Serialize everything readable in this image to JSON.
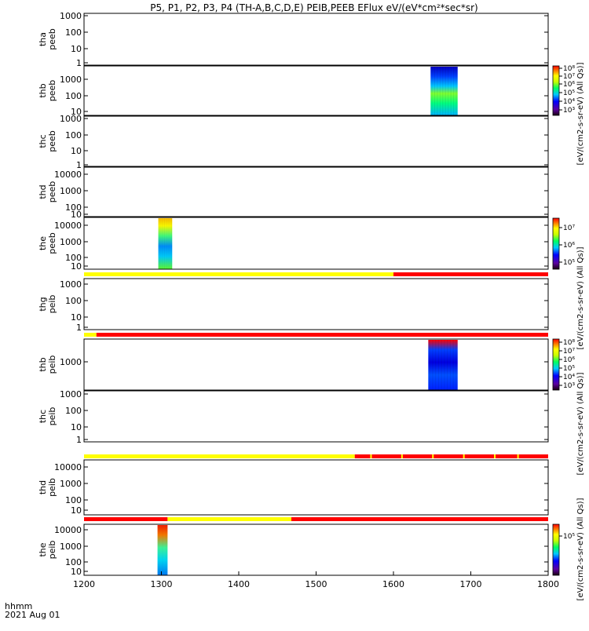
{
  "title": "P5, P1, P2, P3, P4 (TH-A,B,C,D,E) PEIB,PEEB EFlux eV/(eV*cm²*sec*sr)",
  "colors": {
    "flag_yellow": "#ffff00",
    "flag_red": "#ff0000"
  },
  "chart_data": {
    "type": "heatmap",
    "x_axis": {
      "range": [
        1200,
        1800
      ],
      "ticks": [
        1200,
        1300,
        1400,
        1500,
        1600,
        1700,
        1800
      ],
      "tick_labels": [
        "1200",
        "1300",
        "1400",
        "1500",
        "1600",
        "1700",
        "1800"
      ],
      "label_line1": "hhmm",
      "label_line2": "2021 Aug 01"
    },
    "panels": [
      {
        "ylabel_1": "tha",
        "ylabel_2": "peeb",
        "y_ticks": [
          "1000",
          "100",
          "10",
          "1"
        ],
        "data": []
      },
      {
        "ylabel_1": "thb",
        "ylabel_2": "peeb",
        "y_ticks": [
          "1000",
          "100",
          "10"
        ],
        "data": [
          {
            "x_start": 1648,
            "x_end": 1683
          }
        ]
      },
      {
        "ylabel_1": "thc",
        "ylabel_2": "peeb",
        "y_ticks": [
          "1000",
          "100",
          "10",
          "1"
        ],
        "data": []
      },
      {
        "ylabel_1": "thd",
        "ylabel_2": "peeb",
        "y_ticks": [
          "10000",
          "1000",
          "100",
          "10"
        ],
        "data": []
      },
      {
        "ylabel_1": "the",
        "ylabel_2": "peeb",
        "y_ticks": [
          "10000",
          "1000",
          "100",
          "10"
        ],
        "data": [
          {
            "x_start": 1296,
            "x_end": 1314
          }
        ]
      },
      {
        "ylabel_1": "thg",
        "ylabel_2": "peib",
        "y_ticks": [
          "1000",
          "100",
          "10",
          "1"
        ],
        "data": []
      },
      {
        "ylabel_1": "thb",
        "ylabel_2": "peib",
        "y_ticks": [
          "1000"
        ],
        "data": [
          {
            "x_start": 1645,
            "x_end": 1683
          }
        ]
      },
      {
        "ylabel_1": "thc",
        "ylabel_2": "peib",
        "y_ticks": [
          "1000",
          "100",
          "10",
          "1"
        ],
        "data": []
      },
      {
        "ylabel_1": "thd",
        "ylabel_2": "peib",
        "y_ticks": [
          "10000",
          "1000",
          "100",
          "10"
        ],
        "data": []
      },
      {
        "ylabel_1": "the",
        "ylabel_2": "peib",
        "y_ticks": [
          "10000",
          "1000",
          "100",
          "10"
        ],
        "data": [
          {
            "x_start": 1295,
            "x_end": 1308
          }
        ]
      }
    ],
    "flag_bars": [
      {
        "segments": [
          [
            1200,
            1600,
            "yellow"
          ],
          [
            1600,
            1800,
            "red"
          ]
        ]
      },
      {
        "segments": [
          [
            1200,
            1216,
            "yellow"
          ],
          [
            1216,
            1800,
            "red"
          ]
        ]
      },
      {
        "segments": [
          [
            1200,
            1550,
            "yellow"
          ],
          [
            1550,
            1800,
            "red"
          ]
        ]
      },
      {
        "segments": [
          [
            1200,
            1308,
            "red"
          ],
          [
            1308,
            1468,
            "yellow"
          ],
          [
            1468,
            1800,
            "red"
          ]
        ]
      }
    ],
    "colorbars": [
      {
        "label": "[eV/(cm2-s-sr-eV) (All Qs)]",
        "tick_labels": [
          "10⁸",
          "10⁷",
          "10⁶",
          "10⁵",
          "10⁴",
          "10³"
        ]
      },
      {
        "label": "[eV/(cm2-s-sr-eV) (All Qs)]",
        "tick_labels": [
          "10⁷",
          "10⁶",
          "10⁵"
        ]
      },
      {
        "label": "[eV/(cm2-s-sr-eV) (All Qs)]",
        "tick_labels": [
          "10⁸",
          "10⁷",
          "10⁶",
          "10⁵",
          "10⁴",
          "10³"
        ]
      },
      {
        "label": "[eV/(cm2-s-sr-eV) (All Qs)]",
        "tick_labels": [
          "10⁵"
        ]
      }
    ]
  }
}
